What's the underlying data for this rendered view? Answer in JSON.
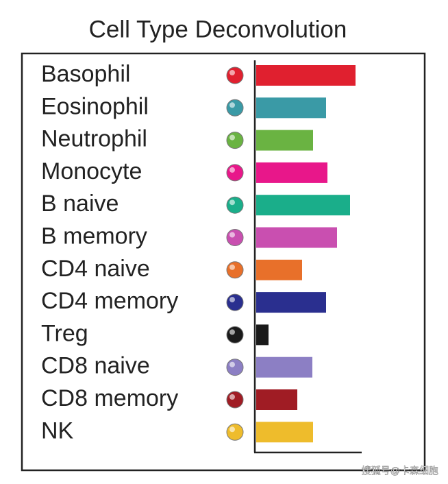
{
  "chart_data": {
    "type": "hbar",
    "title": "Cell Type Deconvolution",
    "categories": [
      "Basophil",
      "Eosinophil",
      "Neutrophil",
      "Monocyte",
      "B naive",
      "B memory",
      "CD4 naive",
      "CD4 memory",
      "Treg",
      "CD8 naive",
      "CD8 memory",
      "NK"
    ],
    "values": [
      145,
      102,
      83,
      104,
      137,
      118,
      67,
      102,
      18,
      82,
      60,
      83
    ],
    "colors": [
      "#e0202f",
      "#3a9aa6",
      "#6ab342",
      "#e8178a",
      "#1aae8a",
      "#c94fb0",
      "#e8702a",
      "#2a2f8f",
      "#1a1a1a",
      "#8c7fc4",
      "#a01c24",
      "#eebc2c"
    ],
    "xlim": [
      0,
      156
    ],
    "watermark": "搜狐号@卡森细胞"
  }
}
